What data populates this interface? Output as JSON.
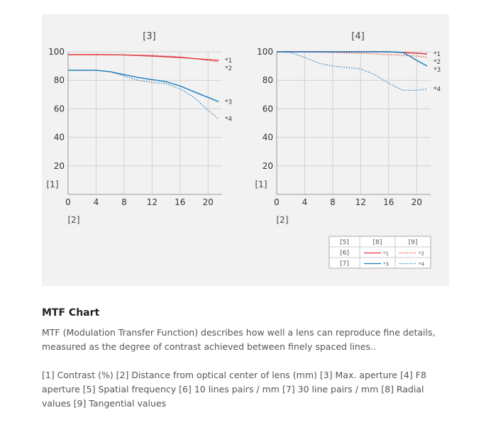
{
  "chart_data": [
    {
      "type": "line",
      "title": "[3]",
      "ylabel": "[1]",
      "xlabel": "[2]",
      "xlim": [
        0,
        22
      ],
      "ylim": [
        0,
        100
      ],
      "xticks": [
        0,
        4,
        8,
        12,
        16,
        20
      ],
      "yticks": [
        20,
        40,
        60,
        80,
        100
      ],
      "grid": true,
      "series": [
        {
          "name": "*1",
          "color": "#e0353a",
          "style": "solid",
          "x": [
            0,
            4,
            8,
            12,
            16,
            20,
            21.5
          ],
          "y": [
            98,
            98,
            97.8,
            97,
            96,
            94.5,
            94
          ]
        },
        {
          "name": "*2",
          "color": "#e0353a",
          "style": "dotted",
          "x": [
            0,
            4,
            8,
            12,
            16,
            20,
            21.5
          ],
          "y": [
            98,
            98,
            97.8,
            97.5,
            96.5,
            94,
            93
          ]
        },
        {
          "name": "*3",
          "color": "#1b7bbd",
          "style": "solid",
          "x": [
            0,
            2,
            4,
            6,
            8,
            10,
            12,
            14,
            16,
            18,
            20,
            21.5
          ],
          "y": [
            87,
            87,
            87,
            86,
            84,
            82,
            80.5,
            79,
            76,
            72,
            68,
            65
          ]
        },
        {
          "name": "*4",
          "color": "#1b7bbd",
          "style": "dotted",
          "x": [
            0,
            2,
            4,
            6,
            8,
            10,
            12,
            13,
            14,
            16,
            18,
            20,
            21.5
          ],
          "y": [
            87,
            87,
            87,
            86,
            83,
            80,
            78.5,
            78,
            77.5,
            74,
            68,
            59,
            53
          ]
        }
      ]
    },
    {
      "type": "line",
      "title": "[4]",
      "ylabel": "[1]",
      "xlabel": "[2]",
      "xlim": [
        0,
        22
      ],
      "ylim": [
        0,
        100
      ],
      "xticks": [
        0,
        4,
        8,
        12,
        16,
        20
      ],
      "yticks": [
        20,
        40,
        60,
        80,
        100
      ],
      "grid": true,
      "series": [
        {
          "name": "*1",
          "color": "#e0353a",
          "style": "solid",
          "x": [
            0,
            4,
            8,
            12,
            16,
            18,
            20,
            21.5
          ],
          "y": [
            100,
            100,
            100,
            100,
            100,
            99.5,
            99,
            98.5
          ]
        },
        {
          "name": "*2",
          "color": "#e0353a",
          "style": "dotted",
          "x": [
            0,
            4,
            8,
            12,
            16,
            18,
            20,
            21.5
          ],
          "y": [
            100,
            100,
            99.5,
            99,
            98,
            97.5,
            97,
            96
          ]
        },
        {
          "name": "*3",
          "color": "#1b7bbd",
          "style": "solid",
          "x": [
            0,
            4,
            8,
            12,
            16,
            18,
            19,
            20,
            21.5
          ],
          "y": [
            100,
            100,
            100,
            100,
            100,
            99.5,
            97,
            94,
            90
          ]
        },
        {
          "name": "*4",
          "color": "#1b7bbd",
          "style": "dotted",
          "x": [
            0,
            2,
            4,
            6,
            8,
            10,
            12,
            14,
            16,
            18,
            20,
            21.5
          ],
          "y": [
            100,
            99.5,
            96,
            92,
            90,
            89,
            88,
            84,
            78,
            73,
            73,
            74
          ]
        }
      ]
    }
  ],
  "legend_table": {
    "corner": "[5]",
    "col_sagittal": "[8]",
    "col_tangential": "[9]",
    "row_10": "[6]",
    "row_30": "[7]",
    "cells": [
      "*1",
      "*2",
      "*3",
      "*4"
    ]
  },
  "article": {
    "title": "MTF Chart",
    "description": "MTF (Modulation Transfer Function) describes how well a lens can reproduce fine details, measured as the degree of contrast achieved between finely spaced lines..",
    "legend": "[1] Contrast (%) [2] Distance from optical center of lens (mm) [3] Max. aperture [4] F8 aperture [5] Spatial frequency [6] 10 lines pairs / mm [7] 30 line pairs / mm [8] Radial values [9] Tangential values"
  }
}
